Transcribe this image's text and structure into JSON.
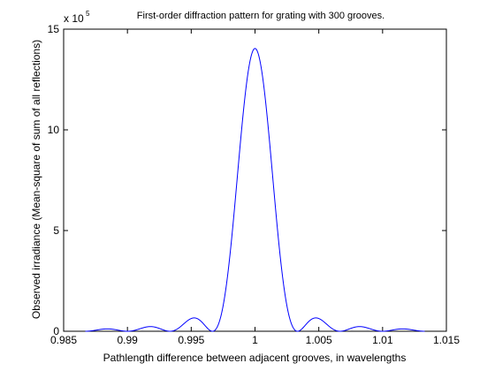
{
  "chart_data": {
    "type": "line",
    "title": "First-order diffraction pattern for grating with 300 grooves.",
    "xlabel": "Pathlength difference between adjacent grooves, in wavelengths",
    "ylabel": "Observed irradiance  (Mean-square of sum of all reflections)",
    "y_exponent_base": "x 10",
    "y_exponent_power": "5",
    "xlim": [
      0.985,
      1.015
    ],
    "ylim": [
      0,
      15
    ],
    "x_ticks": [
      0.985,
      0.99,
      0.995,
      1,
      1.005,
      1.01,
      1.015
    ],
    "x_tick_labels": [
      "0.985",
      "0.99",
      "0.995",
      "1",
      "1.005",
      "1.01",
      "1.015"
    ],
    "y_ticks": [
      0,
      5,
      10,
      15
    ],
    "y_tick_labels": [
      "0",
      "5",
      "10",
      "15"
    ],
    "grid": false,
    "line_color": "#0000ff",
    "series": [
      {
        "x_range": [
          0.9867,
          1.0133
        ],
        "y_scale": 100000.0,
        "peak_x": 1.0,
        "peak_value": 14.04,
        "model": "grating_intensity",
        "grooves": 300
      }
    ]
  }
}
